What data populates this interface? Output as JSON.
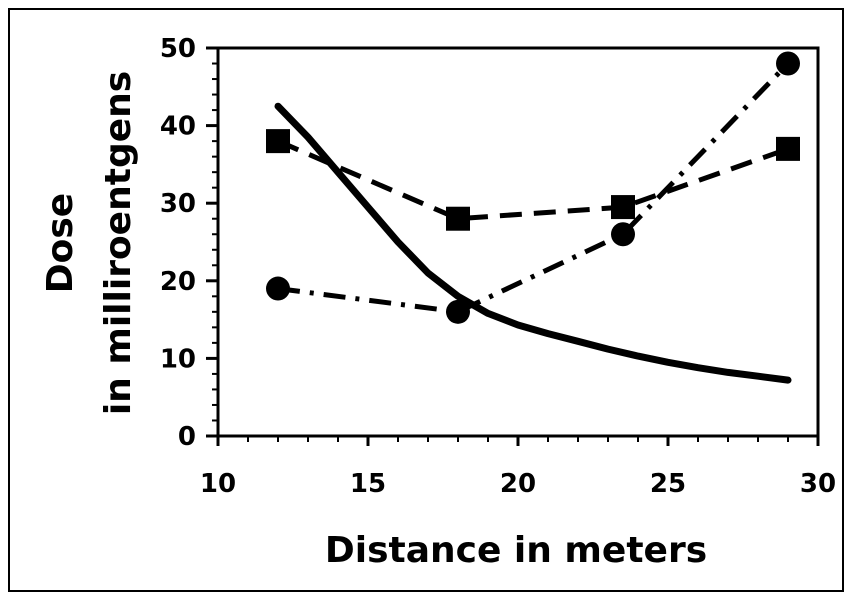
{
  "chart_data": {
    "type": "line",
    "title": "",
    "xlabel": "Distance in meters",
    "ylabel_line1": "Dose",
    "ylabel_line2": "in milliroentgens",
    "xlim": [
      10,
      30
    ],
    "ylim": [
      0,
      50
    ],
    "x_ticks": [
      10,
      15,
      20,
      25,
      30
    ],
    "y_ticks": [
      0,
      10,
      20,
      30,
      40,
      50
    ],
    "grid": false,
    "legend": "none",
    "series": [
      {
        "style": "dash",
        "marker": "square",
        "color": "#000000",
        "x": [
          12,
          18,
          23.5,
          29
        ],
        "y": [
          38,
          28,
          29.5,
          37
        ]
      },
      {
        "style": "dash-dot",
        "marker": "circle",
        "color": "#000000",
        "x": [
          12,
          18,
          23.5,
          29
        ],
        "y": [
          19,
          16,
          26,
          48
        ]
      },
      {
        "style": "solid",
        "marker": "none",
        "color": "#000000",
        "x": [
          12,
          13,
          14,
          15,
          16,
          17,
          18,
          19,
          20,
          21,
          22,
          23,
          24,
          25,
          26,
          27,
          28,
          29
        ],
        "y": [
          42.5,
          38.5,
          34,
          29.5,
          25,
          21,
          18,
          15.8,
          14.3,
          13.2,
          12.2,
          11.2,
          10.3,
          9.5,
          8.8,
          8.2,
          7.7,
          7.2
        ]
      }
    ]
  }
}
